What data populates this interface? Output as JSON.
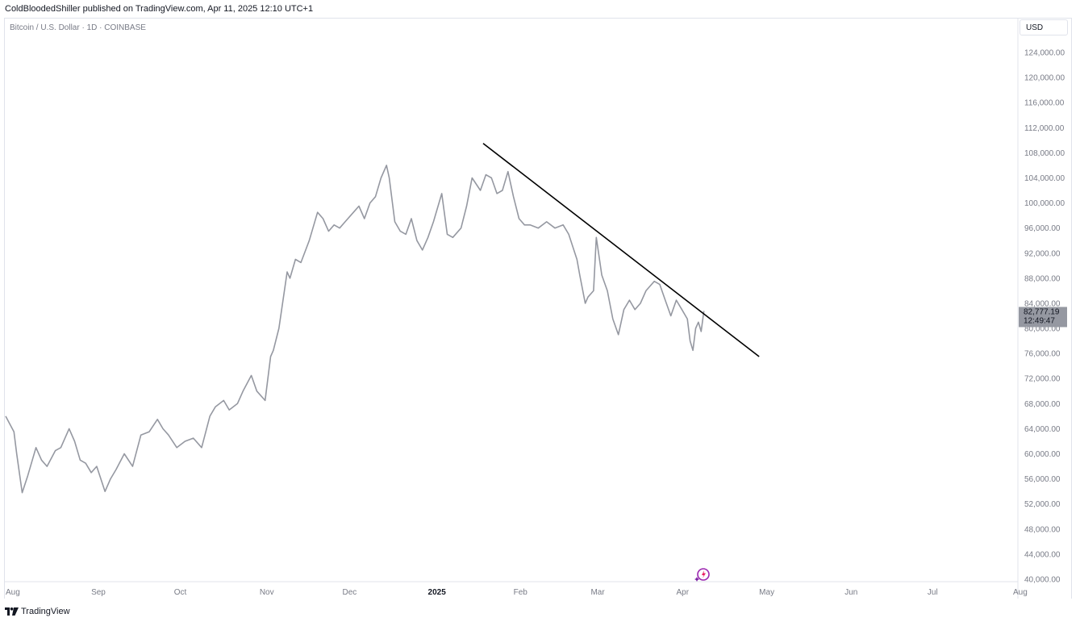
{
  "header": {
    "publisher_line": "ColdBloodedShiller published on TradingView.com, Apr 11, 2025 12:10 UTC+1"
  },
  "symbol": {
    "title": "Bitcoin / U.S. Dollar · 1D · COINBASE"
  },
  "price_axis": {
    "currency": "USD",
    "last_price_label": "82,777.19",
    "countdown_label": "12:49:47",
    "last_price": 82777.19
  },
  "footer": {
    "brand": "TradingView",
    "logo_icon": "tradingview-logo-icon"
  },
  "icons": {
    "sparkle": "sparkle-icon"
  },
  "colors": {
    "series": "#9598a1",
    "trendline": "#000000",
    "price_label_bg": "#9598a1",
    "axis_text": "#787b86",
    "grid_border": "#e0e3eb",
    "sparkle": "#9c27b0"
  },
  "chart_data": {
    "type": "line",
    "title": "Bitcoin / U.S. Dollar · 1D · COINBASE",
    "xlabel": "",
    "ylabel": "",
    "ylim": [
      40000,
      124000
    ],
    "yticks": [
      "124,000.00",
      "120,000.00",
      "116,000.00",
      "112,000.00",
      "108,000.00",
      "104,000.00",
      "100,000.00",
      "96,000.00",
      "92,000.00",
      "88,000.00",
      "84,000.00",
      "80,000.00",
      "76,000.00",
      "72,000.00",
      "68,000.00",
      "64,000.00",
      "60,000.00",
      "56,000.00",
      "52,000.00",
      "48,000.00",
      "44,000.00",
      "40,000.00"
    ],
    "ytick_values": [
      124000,
      120000,
      116000,
      112000,
      108000,
      104000,
      100000,
      96000,
      92000,
      88000,
      84000,
      80000,
      76000,
      72000,
      68000,
      64000,
      60000,
      56000,
      52000,
      48000,
      44000,
      40000
    ],
    "xticks": [
      "Aug",
      "Sep",
      "Oct",
      "Nov",
      "Dec",
      "2025",
      "Feb",
      "Mar",
      "Apr",
      "May",
      "Jun",
      "Jul",
      "Aug"
    ],
    "xtick_dates": [
      "2024-08-01",
      "2024-09-01",
      "2024-10-01",
      "2024-11-01",
      "2024-12-01",
      "2025-01-01",
      "2025-02-01",
      "2025-03-01",
      "2025-04-01",
      "2025-05-01",
      "2025-06-01",
      "2025-07-01",
      "2025-08-01"
    ],
    "bold_xticks": [
      "2025"
    ],
    "grid": false,
    "series": [
      {
        "x": [
          "2024-08-01",
          "2024-08-04",
          "2024-08-05",
          "2024-08-07",
          "2024-08-09",
          "2024-08-12",
          "2024-08-14",
          "2024-08-16",
          "2024-08-19",
          "2024-08-21",
          "2024-08-24",
          "2024-08-26",
          "2024-08-28",
          "2024-08-30",
          "2024-09-01",
          "2024-09-03",
          "2024-09-06",
          "2024-09-08",
          "2024-09-10",
          "2024-09-13",
          "2024-09-16",
          "2024-09-19",
          "2024-09-22",
          "2024-09-25",
          "2024-09-27",
          "2024-09-29",
          "2024-10-02",
          "2024-10-05",
          "2024-10-08",
          "2024-10-11",
          "2024-10-14",
          "2024-10-16",
          "2024-10-19",
          "2024-10-21",
          "2024-10-24",
          "2024-10-26",
          "2024-10-29",
          "2024-10-31",
          "2024-11-03",
          "2024-11-05",
          "2024-11-06",
          "2024-11-08",
          "2024-11-11",
          "2024-11-12",
          "2024-11-14",
          "2024-11-16",
          "2024-11-19",
          "2024-11-22",
          "2024-11-24",
          "2024-11-26",
          "2024-11-28",
          "2024-11-30",
          "2024-12-02",
          "2024-12-05",
          "2024-12-07",
          "2024-12-09",
          "2024-12-11",
          "2024-12-13",
          "2024-12-15",
          "2024-12-17",
          "2024-12-18",
          "2024-12-20",
          "2024-12-22",
          "2024-12-24",
          "2024-12-26",
          "2024-12-28",
          "2024-12-30",
          "2025-01-01",
          "2025-01-03",
          "2025-01-06",
          "2025-01-08",
          "2025-01-10",
          "2025-01-13",
          "2025-01-15",
          "2025-01-17",
          "2025-01-20",
          "2025-01-22",
          "2025-01-24",
          "2025-01-26",
          "2025-01-28",
          "2025-01-30",
          "2025-02-01",
          "2025-02-03",
          "2025-02-05",
          "2025-02-07",
          "2025-02-10",
          "2025-02-13",
          "2025-02-16",
          "2025-02-19",
          "2025-02-21",
          "2025-02-24",
          "2025-02-25",
          "2025-02-27",
          "2025-02-28",
          "2025-03-02",
          "2025-03-03",
          "2025-03-05",
          "2025-03-07",
          "2025-03-09",
          "2025-03-11",
          "2025-03-13",
          "2025-03-15",
          "2025-03-17",
          "2025-03-19",
          "2025-03-21",
          "2025-03-24",
          "2025-03-26",
          "2025-03-28",
          "2025-03-30",
          "2025-04-01",
          "2025-04-03",
          "2025-04-05",
          "2025-04-06",
          "2025-04-07",
          "2025-04-08",
          "2025-04-09",
          "2025-04-10",
          "2025-04-11"
        ],
        "values": [
          66000,
          63500,
          60000,
          53800,
          56500,
          61000,
          59000,
          58000,
          60500,
          61000,
          64000,
          62000,
          59000,
          58500,
          57000,
          58000,
          54000,
          56000,
          57500,
          60000,
          58000,
          63000,
          63500,
          65500,
          64000,
          63000,
          61000,
          62000,
          62500,
          61000,
          66000,
          67500,
          68500,
          67000,
          68000,
          70000,
          72500,
          70000,
          68500,
          75500,
          76500,
          80000,
          89000,
          88000,
          91000,
          90500,
          94000,
          98500,
          97500,
          95500,
          96500,
          96000,
          97000,
          98500,
          99500,
          97500,
          100000,
          101000,
          104000,
          106000,
          104000,
          97000,
          95500,
          95000,
          97500,
          94000,
          92500,
          94500,
          97000,
          101500,
          95000,
          94500,
          96000,
          99500,
          104000,
          102000,
          104500,
          104000,
          101500,
          102000,
          105000,
          101000,
          97500,
          96500,
          96500,
          96000,
          97000,
          96000,
          96500,
          95000,
          91000,
          88500,
          84000,
          85000,
          86000,
          94500,
          88500,
          86000,
          81500,
          79000,
          83000,
          84500,
          83000,
          84000,
          86000,
          87500,
          87000,
          84500,
          82000,
          84500,
          83000,
          81500,
          78000,
          76500,
          80000,
          81000,
          79500,
          82777
        ]
      }
    ],
    "annotations": [
      {
        "type": "trendline",
        "from": [
          "2025-01-21",
          109500
        ],
        "to": [
          "2025-05-01",
          75500
        ]
      }
    ]
  }
}
